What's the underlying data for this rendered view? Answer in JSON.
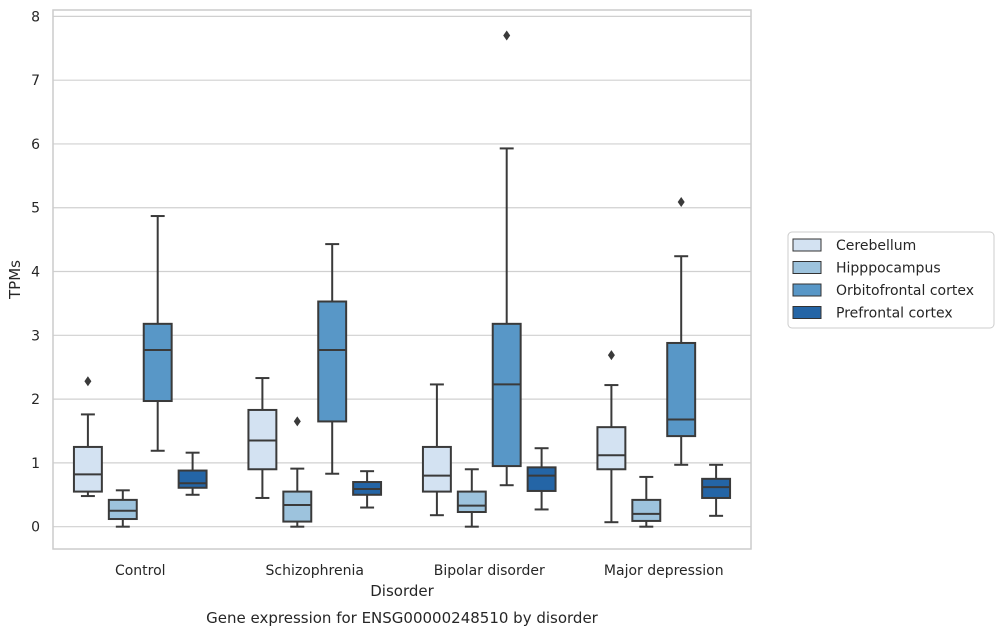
{
  "chart_data": {
    "type": "boxplot",
    "caption": "Gene expression for ENSG00000248510 by disorder",
    "xlabel": "Disorder",
    "ylabel": "TPMs",
    "ylim": [
      -0.35,
      8.1
    ],
    "yticks": [
      0,
      1,
      2,
      3,
      4,
      5,
      6,
      7,
      8
    ],
    "grid": true,
    "legend_position": "right",
    "categories": [
      "Control",
      "Schizophrenia",
      "Bipolar disorder",
      "Major depression"
    ],
    "series": [
      {
        "name": "Cerebellum",
        "color": "#d3e2f2",
        "boxes": [
          {
            "whislo": 0.48,
            "q1": 0.55,
            "med": 0.82,
            "q3": 1.25,
            "whishi": 1.76,
            "fliers": [
              2.28
            ]
          },
          {
            "whislo": 0.45,
            "q1": 0.9,
            "med": 1.35,
            "q3": 1.83,
            "whishi": 2.33,
            "fliers": []
          },
          {
            "whislo": 0.18,
            "q1": 0.55,
            "med": 0.8,
            "q3": 1.25,
            "whishi": 2.23,
            "fliers": []
          },
          {
            "whislo": 0.07,
            "q1": 0.9,
            "med": 1.12,
            "q3": 1.56,
            "whishi": 2.22,
            "fliers": [
              2.69
            ]
          }
        ]
      },
      {
        "name": "Hipppocampus",
        "color": "#9dc3dd",
        "boxes": [
          {
            "whislo": 0.0,
            "q1": 0.12,
            "med": 0.25,
            "q3": 0.42,
            "whishi": 0.57,
            "fliers": []
          },
          {
            "whislo": 0.0,
            "q1": 0.08,
            "med": 0.34,
            "q3": 0.55,
            "whishi": 0.91,
            "fliers": [
              1.65
            ]
          },
          {
            "whislo": 0.0,
            "q1": 0.23,
            "med": 0.33,
            "q3": 0.55,
            "whishi": 0.9,
            "fliers": []
          },
          {
            "whislo": 0.0,
            "q1": 0.09,
            "med": 0.2,
            "q3": 0.42,
            "whishi": 0.78,
            "fliers": []
          }
        ]
      },
      {
        "name": "Orbitofrontal cortex",
        "color": "#5897c7",
        "boxes": [
          {
            "whislo": 1.19,
            "q1": 1.97,
            "med": 2.77,
            "q3": 3.18,
            "whishi": 4.87,
            "fliers": []
          },
          {
            "whislo": 0.83,
            "q1": 1.65,
            "med": 2.77,
            "q3": 3.53,
            "whishi": 4.43,
            "fliers": []
          },
          {
            "whislo": 0.65,
            "q1": 0.95,
            "med": 2.23,
            "q3": 3.18,
            "whishi": 5.93,
            "fliers": [
              7.7
            ]
          },
          {
            "whislo": 0.97,
            "q1": 1.42,
            "med": 1.68,
            "q3": 2.88,
            "whishi": 4.24,
            "fliers": [
              5.09
            ]
          }
        ]
      },
      {
        "name": "Prefrontal cortex",
        "color": "#2465a6",
        "boxes": [
          {
            "whislo": 0.5,
            "q1": 0.61,
            "med": 0.68,
            "q3": 0.88,
            "whishi": 1.16,
            "fliers": []
          },
          {
            "whislo": 0.3,
            "q1": 0.5,
            "med": 0.59,
            "q3": 0.7,
            "whishi": 0.87,
            "fliers": []
          },
          {
            "whislo": 0.27,
            "q1": 0.56,
            "med": 0.8,
            "q3": 0.93,
            "whishi": 1.23,
            "fliers": []
          },
          {
            "whislo": 0.17,
            "q1": 0.45,
            "med": 0.62,
            "q3": 0.75,
            "whishi": 0.97,
            "fliers": []
          }
        ]
      }
    ]
  }
}
